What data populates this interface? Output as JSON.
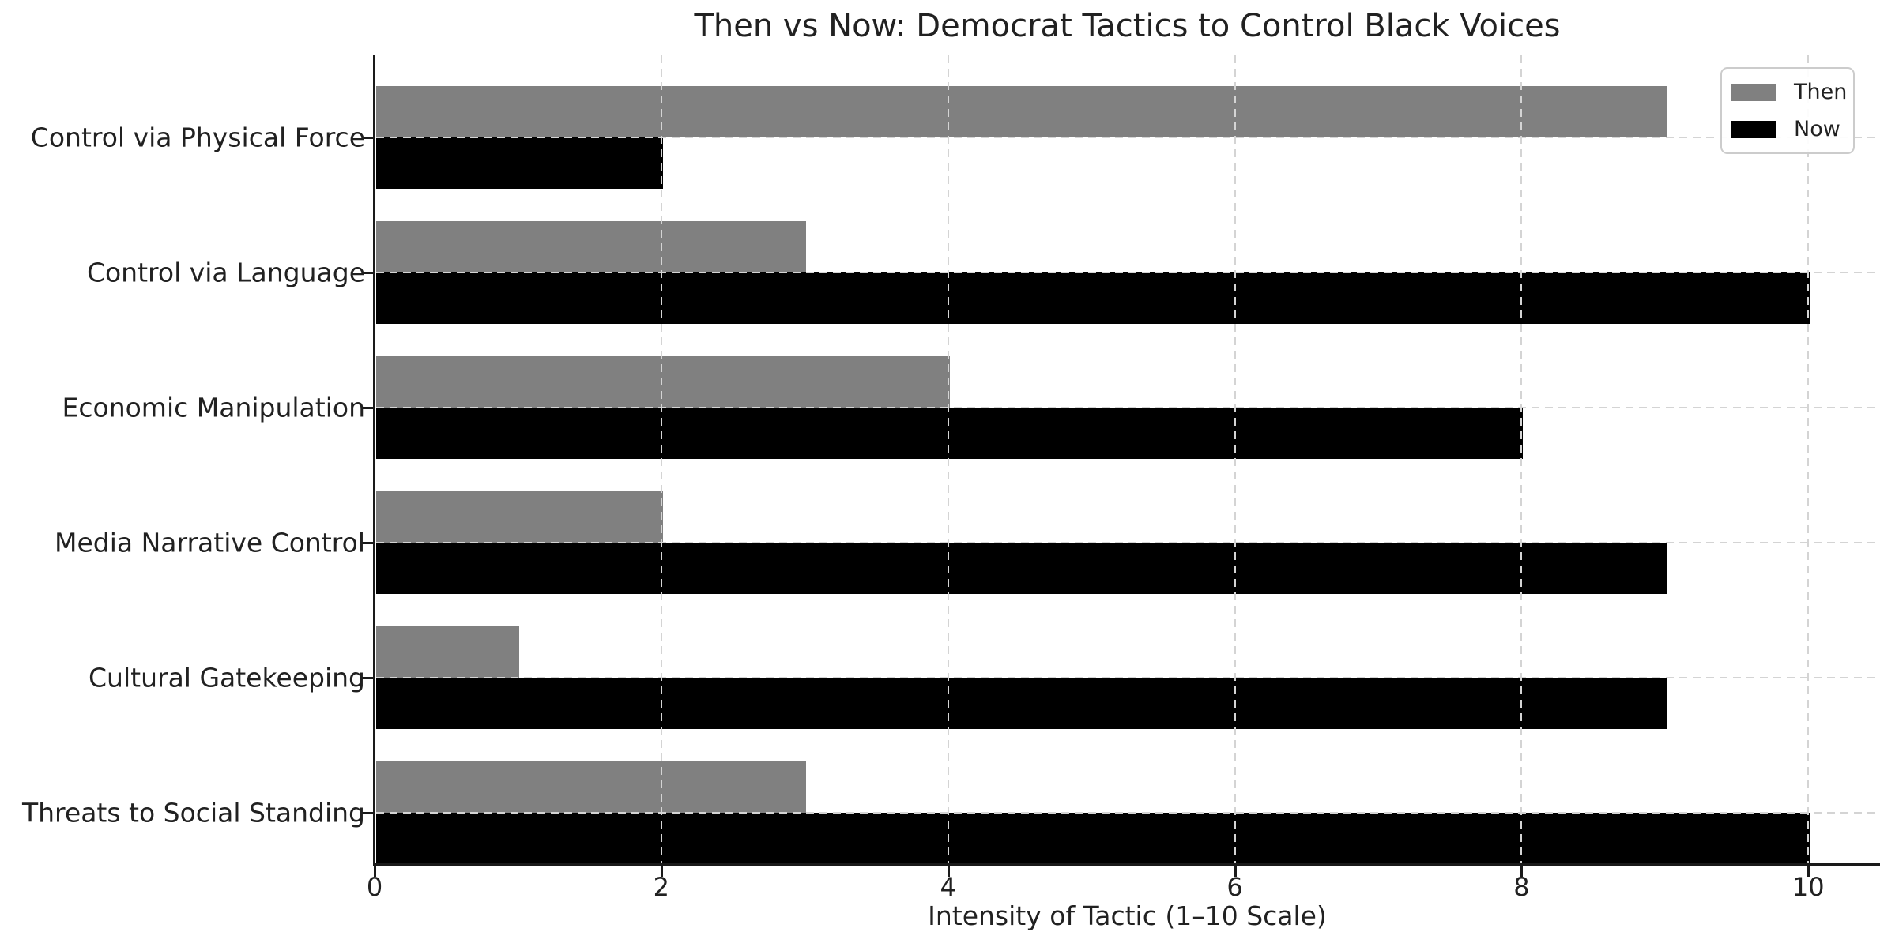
{
  "title": "Then vs Now: Democrat Tactics to Control Black Voices",
  "chart_data": {
    "type": "bar",
    "orientation": "horizontal",
    "title": "Then vs Now: Democrat Tactics to Control Black Voices",
    "categories": [
      "Control via Physical Force",
      "Control via Language",
      "Economic Manipulation",
      "Media Narrative Control",
      "Cultural Gatekeeping",
      "Threats to Social Standing"
    ],
    "series": [
      {
        "name": "Then",
        "color": "#808080",
        "values": [
          9,
          3,
          4,
          2,
          1,
          3
        ]
      },
      {
        "name": "Now",
        "color": "#000000",
        "values": [
          2,
          10,
          8,
          9,
          9,
          10
        ]
      }
    ],
    "xlabel": "Intensity of Tactic (1–10 Scale)",
    "ylabel": "",
    "xlim": [
      0,
      10.5
    ],
    "xticks": [
      0,
      2,
      4,
      6,
      8,
      10
    ],
    "xtick_labels": [
      "0",
      "2",
      "4",
      "6",
      "8",
      "10"
    ],
    "grid": "dashed-both-axes",
    "gridline_color": "#d4d4d4",
    "legend_position": "upper-right",
    "background_color": "#ffffff"
  },
  "legend": {
    "items": [
      {
        "label": "Then",
        "color": "#808080"
      },
      {
        "label": "Now",
        "color": "#000000"
      }
    ]
  }
}
